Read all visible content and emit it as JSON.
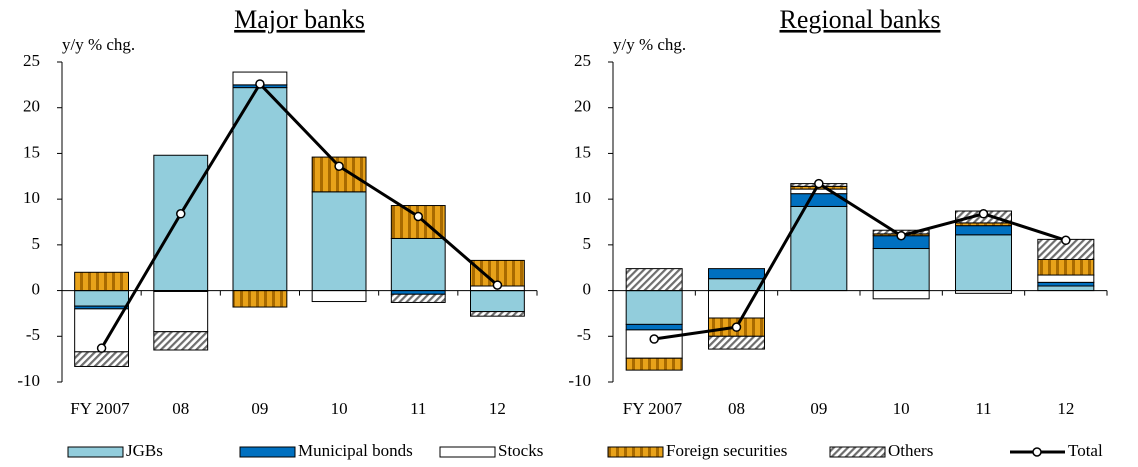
{
  "chart_data": [
    {
      "type": "bar",
      "title": "Major banks",
      "y_label": "y/y % chg.",
      "categories": [
        "FY 2007",
        "08",
        "09",
        "10",
        "11",
        "12"
      ],
      "ylim": [
        -10,
        25
      ],
      "yticks": [
        -10,
        -5,
        0,
        5,
        10,
        15,
        20,
        25
      ],
      "series": [
        {
          "name": "JGBs",
          "color": "#92cddc",
          "values": [
            -1.7,
            14.8,
            22.2,
            10.8,
            5.7,
            -2.3
          ]
        },
        {
          "name": "Municipal bonds",
          "color": "#0070c0",
          "values": [
            -0.3,
            -0.1,
            0.3,
            0,
            -0.4,
            0
          ]
        },
        {
          "name": "Stocks",
          "color": "#ffffff",
          "values": [
            -4.7,
            -4.4,
            1.4,
            -1.2,
            0,
            0.5
          ]
        },
        {
          "name": "Foreign securities",
          "color": "#d08c00",
          "pattern": "vertical-stripes",
          "values": [
            2.0,
            0,
            -1.8,
            3.8,
            3.6,
            2.8
          ]
        },
        {
          "name": "Others",
          "color": "#808080",
          "pattern": "diagonal-hatch",
          "values": [
            -1.6,
            -2.0,
            0,
            0,
            -0.9,
            -0.5
          ]
        },
        {
          "name": "Total",
          "color": "#000000",
          "type": "line",
          "values": [
            -6.3,
            8.4,
            22.6,
            13.6,
            8.1,
            0.6
          ]
        }
      ]
    },
    {
      "type": "bar",
      "title": "Regional banks",
      "y_label": "y/y % chg.",
      "categories": [
        "FY 2007",
        "08",
        "09",
        "10",
        "11",
        "12"
      ],
      "ylim": [
        -10,
        25
      ],
      "yticks": [
        -10,
        -5,
        0,
        5,
        10,
        15,
        20,
        25
      ],
      "series": [
        {
          "name": "JGBs",
          "color": "#92cddc",
          "values": [
            -3.7,
            1.3,
            9.2,
            4.6,
            6.1,
            0.5
          ]
        },
        {
          "name": "Municipal bonds",
          "color": "#0070c0",
          "values": [
            -0.6,
            1.1,
            1.4,
            1.4,
            1.0,
            0.4
          ]
        },
        {
          "name": "Stocks",
          "color": "#ffffff",
          "values": [
            -3.1,
            -3.0,
            0.5,
            -0.9,
            -0.3,
            0.8
          ]
        },
        {
          "name": "Foreign securities",
          "color": "#d08c00",
          "pattern": "vertical-stripes",
          "values": [
            -1.3,
            -2.0,
            0.3,
            0.2,
            0.3,
            1.7
          ]
        },
        {
          "name": "Others",
          "color": "#808080",
          "pattern": "diagonal-hatch",
          "values": [
            2.4,
            -1.4,
            0.3,
            0.4,
            1.3,
            2.2
          ]
        },
        {
          "name": "Total",
          "color": "#000000",
          "type": "line",
          "values": [
            -5.3,
            -4.0,
            11.7,
            6.0,
            8.4,
            5.5
          ]
        }
      ]
    }
  ]
}
